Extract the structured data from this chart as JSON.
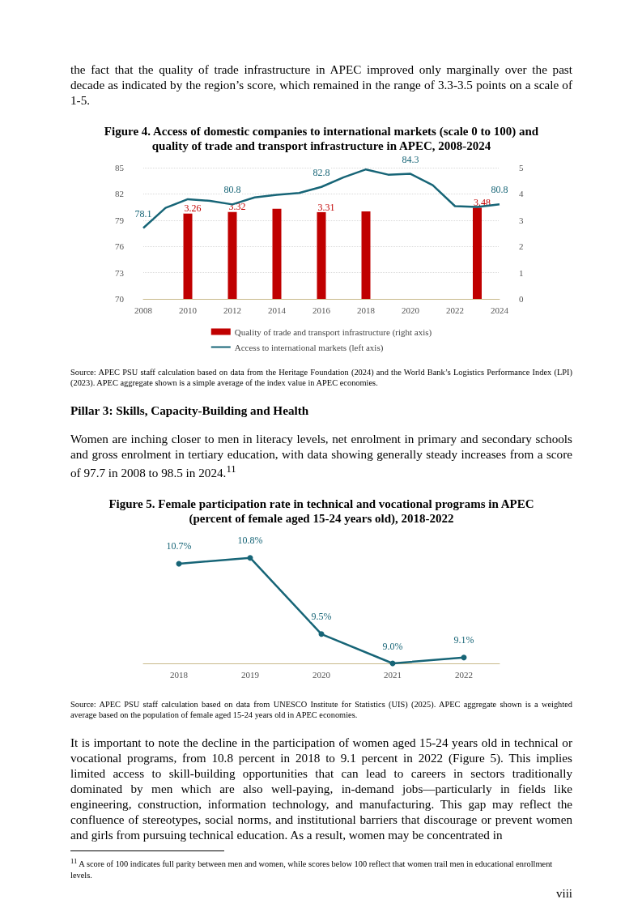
{
  "chart_data": [
    {
      "type": "bar",
      "title": "Figure 4. Access of domestic companies to international markets (scale 0 to 100) and quality of trade and transport infrastructure in APEC, 2008-2024",
      "annotations": [
        "the fact that the quality of trade infrastructure in APEC improved only marginally over the past decade as indicated by the region’s score, which remained in the range of 3.3-3.5 points on a scale of 1-5.",
        "Source: APEC PSU staff calculation based on data from the Heritage Foundation (2024) and the World Bank’s Logistics Performance Index (LPI) (2023). APEC aggregate shown is a simple average of the index value in APEC economies."
      ],
      "x": [
        2008,
        2009,
        2010,
        2011,
        2012,
        2013,
        2014,
        2015,
        2016,
        2017,
        2018,
        2019,
        2020,
        2021,
        2022,
        2023,
        2024
      ],
      "series": [
        {
          "name": "Quality of trade and transport infrastructure (right axis)",
          "type": "bar",
          "axis": "y2",
          "color": "#c00000",
          "x": [
            2010,
            2012,
            2014,
            2016,
            2018,
            2023
          ],
          "values": [
            3.26,
            3.32,
            3.43,
            3.31,
            3.33,
            3.48
          ],
          "value_labels": [
            "3.26",
            "3.32",
            null,
            "3.31",
            null,
            "3.48"
          ]
        },
        {
          "name": "Access to international markets (left axis)",
          "type": "line",
          "color": "#176577",
          "values": [
            78.1,
            80.4,
            81.4,
            81.2,
            80.8,
            81.6,
            81.9,
            82.1,
            82.8,
            83.9,
            84.8,
            84.2,
            84.3,
            83.0,
            80.6,
            80.5,
            80.8
          ],
          "value_labels": [
            "78.1",
            null,
            null,
            null,
            "80.8",
            null,
            null,
            null,
            "82.8",
            null,
            null,
            null,
            "84.3",
            null,
            null,
            null,
            "80.8"
          ]
        }
      ],
      "xlim": [
        2008,
        2024
      ],
      "xticks": [
        2008,
        2010,
        2012,
        2014,
        2016,
        2018,
        2020,
        2022,
        2024
      ],
      "ylim": [
        70,
        85
      ],
      "yticks": [
        70,
        73,
        76,
        79,
        82,
        85
      ],
      "y2lim": [
        0,
        5
      ],
      "y2ticks": [
        0,
        1,
        2,
        3,
        4,
        5
      ],
      "grid": "y",
      "legend": "bottom",
      "marker": "none"
    },
    {
      "type": "line",
      "title": "Figure 5. Female participation rate in technical and vocational programs in APEC (percent of female aged 15-24 years old), 2018-2022",
      "annotations": [
        "Pillar 3: Skills, Capacity-Building and Health",
        "Women are inching closer to men in literacy levels, net enrolment in primary and secondary schools and gross enrolment in tertiary education, with data showing generally steady increases from a score of 97.7 in 2008 to 98.5 in 2024.$^{11}$",
        "Source: APEC PSU staff calculation based on data from UNESCO Institute for Statistics (UIS) (2025). APEC aggregate shown is a weighted average based on the population of female aged 15-24 years old in APEC economies.",
        "It is important to note the decline in the participation of women aged 15-24 years old in technical or vocational programs, from 10.8 percent in 2018 to 9.1 percent in 2022 (Figure 5). This implies limited access to skill-building opportunities that can lead to careers in sectors traditionally dominated by men which are also well-paying, in-demand jobs—particularly in fields like engineering, construction, information technology, and manufacturing. This gap may reflect the confluence of stereotypes, social norms, and institutional barriers that discourage or prevent women and girls from pursuing technical education. As a result, women may be concentrated in",
        "$^{11}$ A score of 100 indicates full parity between men and women, while scores below 100 reflect that women trail men in educational enrollment levels.",
        "viii"
      ],
      "categories": [
        "2018",
        "2019",
        "2020",
        "2021",
        "2022"
      ],
      "values": [
        10.7,
        10.8,
        9.5,
        9.0,
        9.1
      ],
      "value_labels": [
        "10.7%",
        "10.8%",
        "9.5%",
        "9.0%",
        "9.1%"
      ],
      "color": "#176577",
      "tick_labels": "x",
      "grid": false,
      "legend": false,
      "marker": "circle"
    }
  ]
}
